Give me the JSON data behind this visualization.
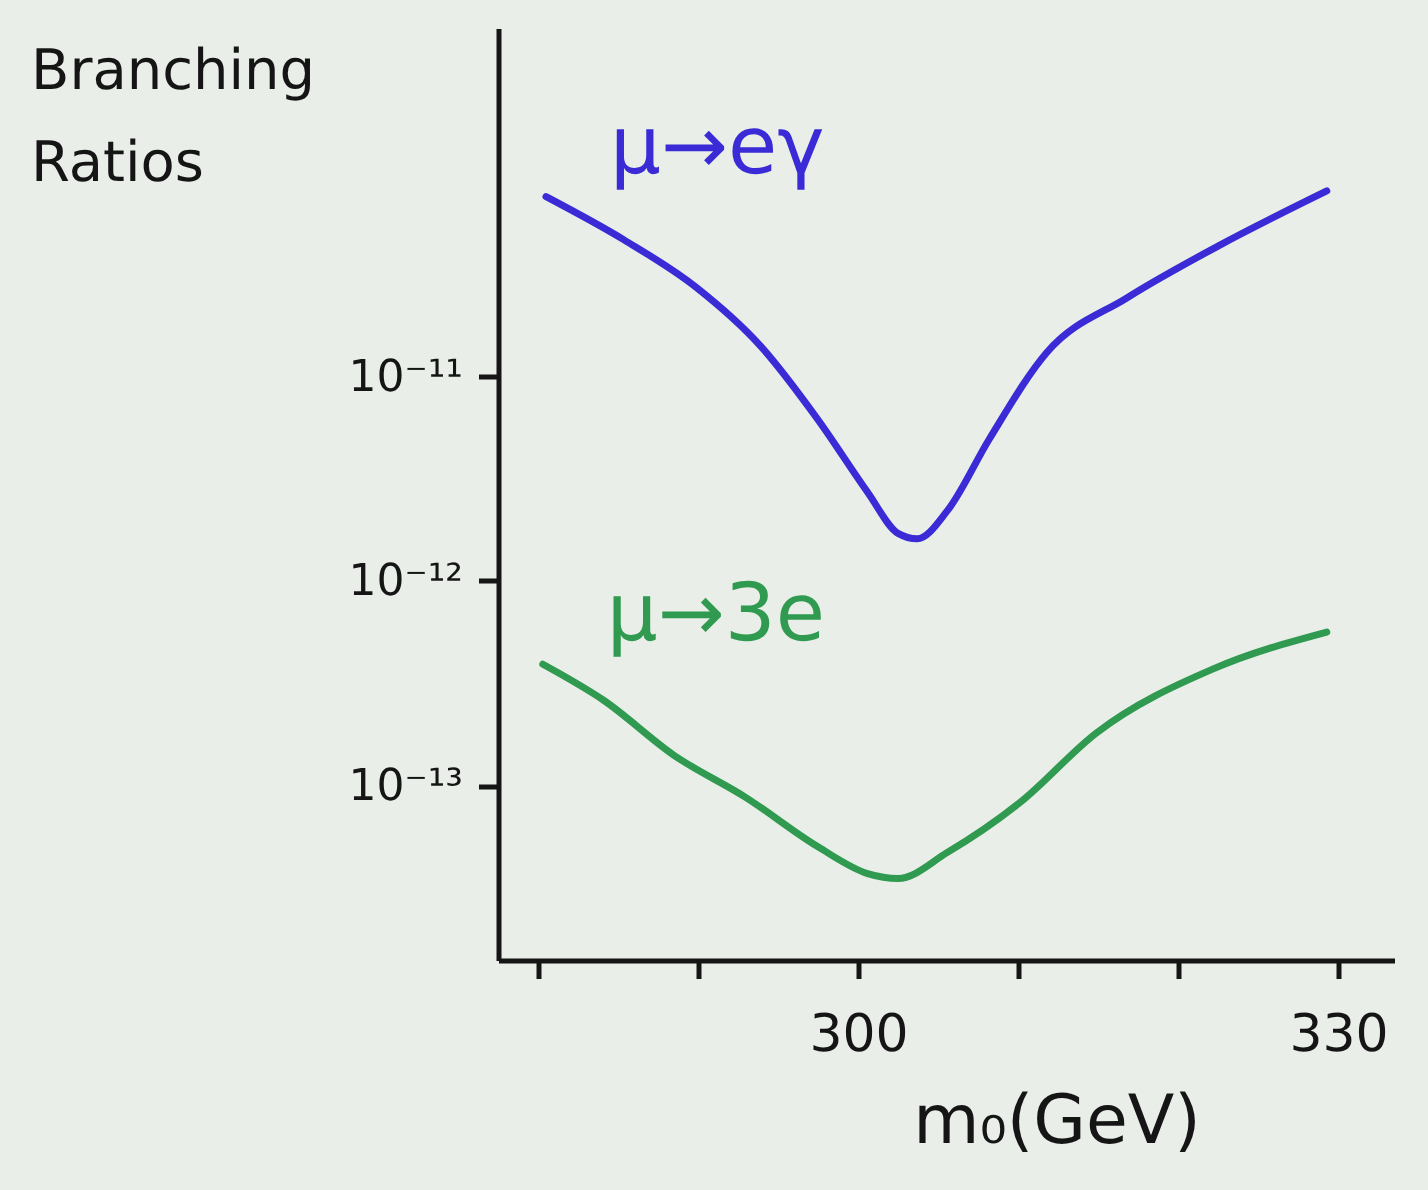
{
  "chart_data": {
    "type": "line",
    "xlabel": "m₀(GeV)",
    "ylabel": "Branching Ratios",
    "log": "y",
    "xlim": [
      277.5,
      333.5
    ],
    "ylim": [
      1.4e-14,
      5e-10
    ],
    "xticks": [
      {
        "value": 280,
        "label": null
      },
      {
        "value": 290,
        "label": null
      },
      300,
      {
        "value": 310,
        "label": null
      },
      {
        "value": 320,
        "label": null
      },
      330
    ],
    "yticks": [
      {
        "value": 1e-13,
        "label": "10⁻¹³"
      },
      {
        "value": 1e-12,
        "label": "10⁻¹²"
      },
      {
        "value": 1e-11,
        "label": "10⁻¹¹"
      }
    ],
    "line_style": "solid",
    "series": [
      {
        "name": "μ→eγ",
        "color": "#3a2bd6",
        "x": [
          280.5,
          285.4,
          289.9,
          293.9,
          297.5,
          300.6,
          302.5,
          303.7,
          305.6,
          308.2,
          311.8,
          316.8,
          322.5,
          329.3
        ],
        "values": [
          7.5e-11,
          4.6e-11,
          2.7e-11,
          1.4e-11,
          6.1e-12,
          2.7e-12,
          1.7e-12,
          1.6e-12,
          2.2e-12,
          4.9e-12,
          1.3e-11,
          2.4e-11,
          4.3e-11,
          8e-11
        ]
      },
      {
        "name": "μ→3e",
        "color": "#2f9a50",
        "x": [
          280.3,
          284.1,
          288.5,
          293.0,
          297.5,
          300.6,
          302.5,
          305.6,
          310.1,
          314.9,
          322.2,
          329.3
        ],
        "values": [
          3.9e-13,
          2.6e-13,
          1.4e-13,
          8.7e-14,
          5e-14,
          3.7e-14,
          3.5e-14,
          4.7e-14,
          8.2e-14,
          1.8e-13,
          3.7e-13,
          5.6e-13
        ]
      }
    ]
  }
}
